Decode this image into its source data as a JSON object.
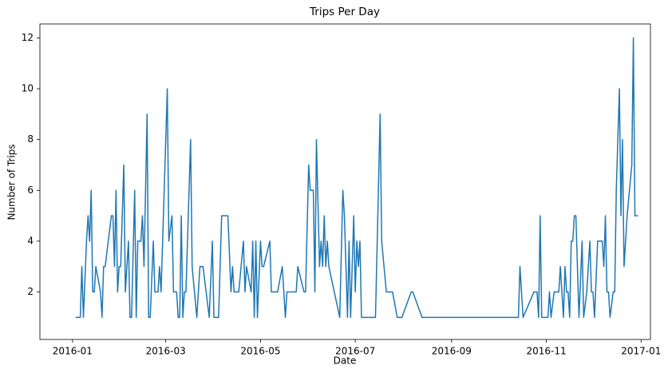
{
  "chart_data": {
    "type": "line",
    "title": "Trips Per Day",
    "x_label": "Date",
    "y_label": "Number of Trips",
    "color": "#1f77b4",
    "x": [
      "2016-01-03",
      "2016-01-06",
      "2016-01-07",
      "2016-01-08",
      "2016-01-10",
      "2016-01-11",
      "2016-01-12",
      "2016-01-13",
      "2016-01-14",
      "2016-01-15",
      "2016-01-16",
      "2016-01-19",
      "2016-01-20",
      "2016-01-21",
      "2016-01-22",
      "2016-01-26",
      "2016-01-27",
      "2016-01-28",
      "2016-01-29",
      "2016-01-30",
      "2016-01-31",
      "2016-02-01",
      "2016-02-03",
      "2016-02-04",
      "2016-02-05",
      "2016-02-06",
      "2016-02-07",
      "2016-02-08",
      "2016-02-10",
      "2016-02-11",
      "2016-02-12",
      "2016-02-14",
      "2016-02-15",
      "2016-02-16",
      "2016-02-18",
      "2016-02-19",
      "2016-02-20",
      "2016-02-22",
      "2016-02-23",
      "2016-02-25",
      "2016-02-26",
      "2016-02-27",
      "2016-03-02",
      "2016-03-03",
      "2016-03-05",
      "2016-03-06",
      "2016-03-08",
      "2016-03-09",
      "2016-03-10",
      "2016-03-11",
      "2016-03-12",
      "2016-03-13",
      "2016-03-14",
      "2016-03-17",
      "2016-03-18",
      "2016-03-21",
      "2016-03-23",
      "2016-03-25",
      "2016-03-29",
      "2016-03-31",
      "2016-04-01",
      "2016-04-04",
      "2016-04-06",
      "2016-04-10",
      "2016-04-12",
      "2016-04-13",
      "2016-04-14",
      "2016-04-17",
      "2016-04-20",
      "2016-04-21",
      "2016-04-22",
      "2016-04-25",
      "2016-04-26",
      "2016-04-27",
      "2016-04-28",
      "2016-04-29",
      "2016-05-01",
      "2016-05-02",
      "2016-05-03",
      "2016-05-07",
      "2016-05-08",
      "2016-05-12",
      "2016-05-15",
      "2016-05-17",
      "2016-05-18",
      "2016-05-24",
      "2016-05-25",
      "2016-05-29",
      "2016-05-30",
      "2016-06-01",
      "2016-06-02",
      "2016-06-04",
      "2016-06-05",
      "2016-06-06",
      "2016-06-08",
      "2016-06-09",
      "2016-06-10",
      "2016-06-11",
      "2016-06-12",
      "2016-06-13",
      "2016-06-14",
      "2016-06-21",
      "2016-06-23",
      "2016-06-24",
      "2016-06-26",
      "2016-06-27",
      "2016-06-28",
      "2016-06-30",
      "2016-07-01",
      "2016-07-02",
      "2016-07-03",
      "2016-07-04",
      "2016-07-05",
      "2016-07-14",
      "2016-07-17",
      "2016-07-18",
      "2016-07-21",
      "2016-07-25",
      "2016-07-28",
      "2016-07-31",
      "2016-08-06",
      "2016-08-07",
      "2016-08-13",
      "2016-10-14",
      "2016-10-15",
      "2016-10-17",
      "2016-10-24",
      "2016-10-26",
      "2016-10-27",
      "2016-10-28",
      "2016-10-29",
      "2016-11-02",
      "2016-11-03",
      "2016-11-04",
      "2016-11-06",
      "2016-11-09",
      "2016-11-10",
      "2016-11-12",
      "2016-11-13",
      "2016-11-14",
      "2016-11-15",
      "2016-11-16",
      "2016-11-17",
      "2016-11-18",
      "2016-11-19",
      "2016-11-20",
      "2016-11-22",
      "2016-11-24",
      "2016-11-25",
      "2016-11-27",
      "2016-11-29",
      "2016-11-30",
      "2016-12-01",
      "2016-12-02",
      "2016-12-04",
      "2016-12-07",
      "2016-12-08",
      "2016-12-09",
      "2016-12-10",
      "2016-12-11",
      "2016-12-12",
      "2016-12-14",
      "2016-12-15",
      "2016-12-16",
      "2016-12-18",
      "2016-12-19",
      "2016-12-20",
      "2016-12-21",
      "2016-12-23",
      "2016-12-26",
      "2016-12-27",
      "2016-12-28",
      "2016-12-30"
    ],
    "values": [
      1,
      1,
      3,
      1,
      4,
      5,
      4,
      6,
      2,
      2,
      3,
      2,
      1,
      3,
      3,
      5,
      5,
      3,
      6,
      2,
      3,
      3,
      7,
      2,
      3,
      4,
      1,
      1,
      6,
      1,
      4,
      4,
      5,
      3,
      9,
      1,
      1,
      4,
      2,
      2,
      3,
      2,
      10,
      4,
      5,
      2,
      2,
      1,
      1,
      5,
      1,
      2,
      2,
      8,
      3,
      1,
      3,
      3,
      1,
      4,
      1,
      1,
      5,
      5,
      2,
      3,
      2,
      2,
      4,
      2,
      3,
      2,
      4,
      1,
      4,
      1,
      4,
      3,
      3,
      4,
      2,
      2,
      3,
      1,
      2,
      2,
      3,
      2,
      2,
      7,
      6,
      6,
      2,
      8,
      3,
      4,
      3,
      5,
      3,
      4,
      3,
      1,
      6,
      5,
      1,
      4,
      1,
      5,
      2,
      4,
      3,
      4,
      1,
      1,
      9,
      4,
      2,
      2,
      1,
      1,
      2,
      2,
      1,
      1,
      3,
      1,
      2,
      2,
      1,
      5,
      1,
      1,
      2,
      1,
      2,
      2,
      3,
      1,
      3,
      2,
      2,
      1,
      4,
      4,
      5,
      5,
      1,
      4,
      1,
      2,
      4,
      2,
      2,
      1,
      4,
      4,
      3,
      5,
      2,
      2,
      1,
      2,
      2,
      6,
      10,
      5,
      8,
      3,
      5,
      7,
      12,
      5,
      5
    ],
    "xlim": [
      "2015-12-11",
      "2017-01-07"
    ],
    "xticks": [
      {
        "value": "2016-01-01",
        "label": "2016-01"
      },
      {
        "value": "2016-03-01",
        "label": "2016-03"
      },
      {
        "value": "2016-05-01",
        "label": "2016-05"
      },
      {
        "value": "2016-07-01",
        "label": "2016-07"
      },
      {
        "value": "2016-09-01",
        "label": "2016-09"
      },
      {
        "value": "2016-11-01",
        "label": "2016-11"
      },
      {
        "value": "2017-01-01",
        "label": "2017-01"
      }
    ],
    "ylim": [
      0.13,
      12.55
    ],
    "yticks": [
      2,
      4,
      6,
      8,
      10,
      12
    ]
  }
}
